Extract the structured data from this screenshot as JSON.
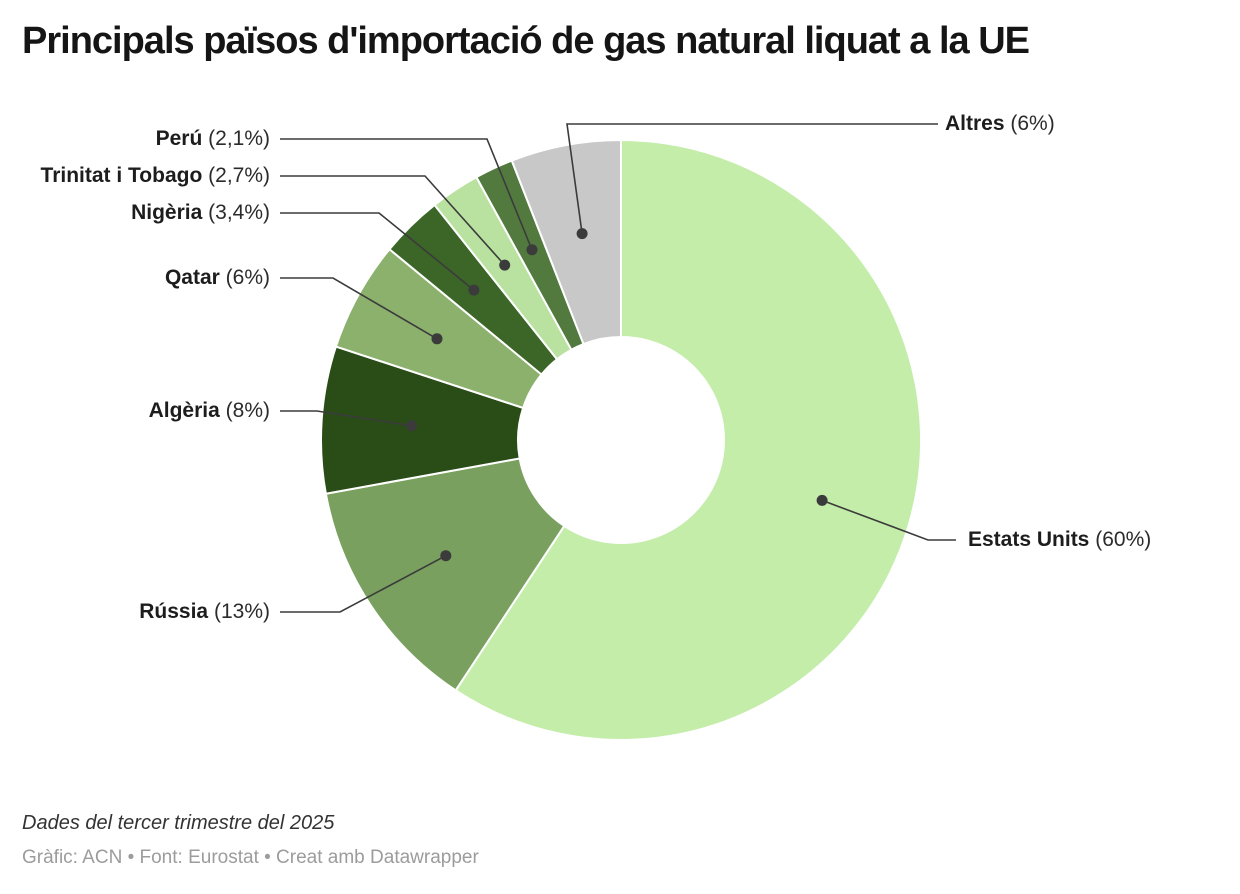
{
  "header": {
    "title": "Principals països d'importació de gas natural liquat a la UE"
  },
  "chart_data": {
    "type": "pie",
    "variant": "donut",
    "title": "Principals països d'importació de gas natural liquat a la UE",
    "unit": "%",
    "direction": "clockwise",
    "start_angle_deg": 0,
    "legend_position": "outside-leader-lines",
    "slices": [
      {
        "name": "Estats Units",
        "value": 60,
        "pct_label": "(60%)",
        "color": "#c4edaa"
      },
      {
        "name": "Rússia",
        "value": 13,
        "pct_label": "(13%)",
        "color": "#7aa05f"
      },
      {
        "name": "Algèria",
        "value": 8,
        "pct_label": "(8%)",
        "color": "#2a4d18"
      },
      {
        "name": "Qatar",
        "value": 6,
        "pct_label": "(6%)",
        "color": "#8cb16d"
      },
      {
        "name": "Nigèria",
        "value": 3.4,
        "pct_label": "(3,4%)",
        "color": "#3c6628"
      },
      {
        "name": "Trinitat i Tobago",
        "value": 2.7,
        "pct_label": "(2,7%)",
        "color": "#b9e2a0"
      },
      {
        "name": "Perú",
        "value": 2.1,
        "pct_label": "(2,1%)",
        "color": "#527a3f"
      },
      {
        "name": "Altres",
        "value": 6,
        "pct_label": "(6%)",
        "color": "#c8c8c8"
      }
    ],
    "leader_line_color": "#3b3b3b",
    "slice_stroke_color": "#ffffff"
  },
  "footer": {
    "note": "Dades del tercer trimestre del 2025",
    "byline": "Gràfic: ACN • Font: Eurostat • Creat amb Datawrapper"
  }
}
